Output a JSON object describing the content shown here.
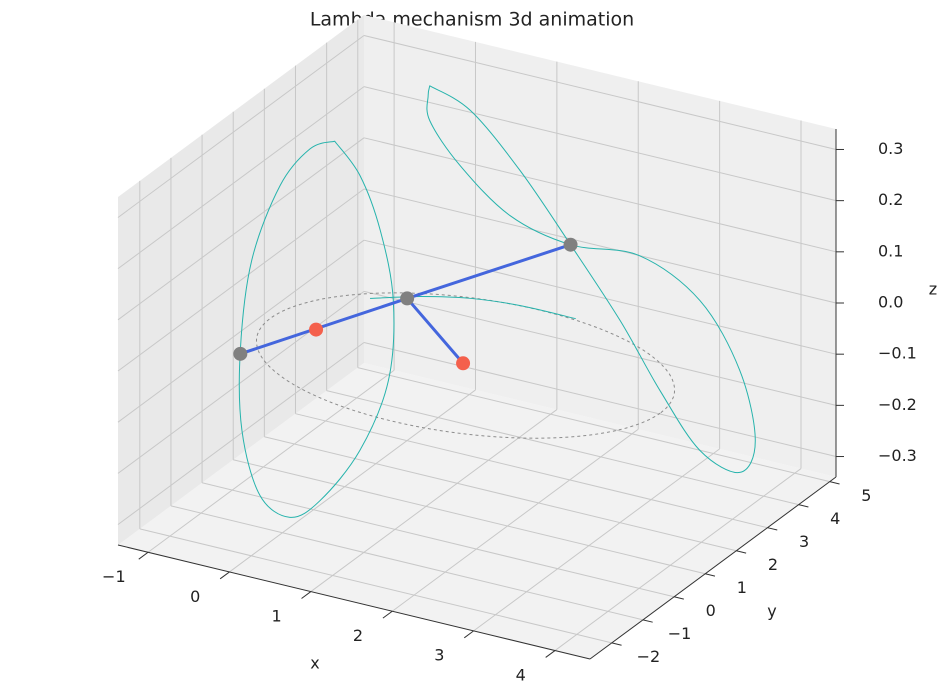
{
  "chart_data": {
    "type": "line3d",
    "title": "Lambda mechanism 3d animation",
    "xlabel": "x",
    "ylabel": "y",
    "zlabel": "z",
    "xlim": [
      -1.37,
      4.43
    ],
    "ylim": [
      -2.7,
      5.2
    ],
    "zlim": [
      -0.34,
      0.34
    ],
    "xticks": [
      {
        "value": -1,
        "label": "−1"
      },
      0,
      1,
      2,
      3,
      4
    ],
    "yticks": [
      {
        "value": -2,
        "label": "−2"
      },
      {
        "value": -1,
        "label": "−1"
      },
      0,
      1,
      2,
      3,
      4,
      5
    ],
    "zticks": [
      {
        "value": -0.3,
        "label": "−0.3"
      },
      {
        "value": -0.2,
        "label": "−0.2"
      },
      {
        "value": -0.1,
        "label": "−0.1"
      },
      {
        "value": 0,
        "label": "0.0"
      },
      0.1,
      0.2,
      0.3
    ],
    "grid": true,
    "circle": {
      "center": [
        1.14,
        1.9,
        -0.1
      ],
      "radius": 2.4,
      "color": "#8c8c8c"
    },
    "series": [
      {
        "color": "#26b3ac",
        "width": 1,
        "x": [
          0.26,
          0.57,
          0.82,
          0.98,
          0.92,
          0.57,
          0.08,
          -0.29,
          -0.66,
          -0.88,
          -0.9,
          -0.76,
          -0.41,
          -0.04,
          0.26
        ],
        "y": [
          0,
          0,
          0,
          0,
          0,
          0,
          0,
          0,
          0,
          0,
          0,
          0,
          0,
          0,
          0
        ],
        "z": [
          0.39,
          0.335,
          0.237,
          0.106,
          -0.052,
          -0.202,
          -0.319,
          -0.366,
          -0.337,
          -0.219,
          -0.063,
          0.118,
          0.278,
          0.364,
          0.39
        ]
      },
      {
        "color": "#26b3ac",
        "width": 1,
        "x": [
          0.28,
          0.78,
          1.39,
          2.01,
          2.62,
          3.11,
          3.6,
          4.09,
          4.28,
          4.09,
          3.6,
          2.86,
          2.01,
          1.27,
          0.65,
          0.28,
          0.26,
          0.28
        ],
        "y": [
          3,
          3,
          3,
          3,
          3,
          3,
          3,
          3,
          3,
          3,
          3,
          3,
          3,
          3,
          3,
          3,
          3,
          3
        ],
        "z": [
          0.364,
          0.335,
          0.241,
          0.12,
          -0.005,
          -0.123,
          -0.221,
          -0.245,
          -0.176,
          -0.046,
          0.072,
          0.131,
          0.12,
          0.148,
          0.223,
          0.296,
          0.344,
          0.364
        ]
      },
      {
        "color": "#26b3ac",
        "width": 1,
        "x": [
          0.06,
          0.5,
          0.98,
          1.54,
          2.21
        ],
        "y": [
          1.67,
          2.13,
          2.46,
          2.62,
          2.63
        ],
        "z": [
          0,
          0,
          0,
          0,
          0
        ]
      },
      {
        "color": "#4466dd",
        "width": 3,
        "x": [
          -0.9,
          0.4,
          2.01
        ],
        "y": [
          0,
          1.96,
          3
        ],
        "z": [
          -0.07,
          0,
          0.12
        ]
      },
      {
        "color": "#4466dd",
        "width": 3,
        "x": [
          0.4,
          1.73
        ],
        "y": [
          1.96,
          0.28
        ],
        "z": [
          0,
          0
        ]
      }
    ],
    "points": [
      {
        "color": "#808080",
        "x": [
          -0.9,
          0.4,
          2.01
        ],
        "y": [
          0,
          1.96,
          3
        ],
        "z": [
          -0.07,
          0,
          0.12
        ]
      },
      {
        "color": "#f4604c",
        "x": [
          -0.31,
          1.73
        ],
        "y": [
          0.89,
          0.28
        ],
        "z": [
          -0.04,
          0
        ]
      }
    ]
  }
}
